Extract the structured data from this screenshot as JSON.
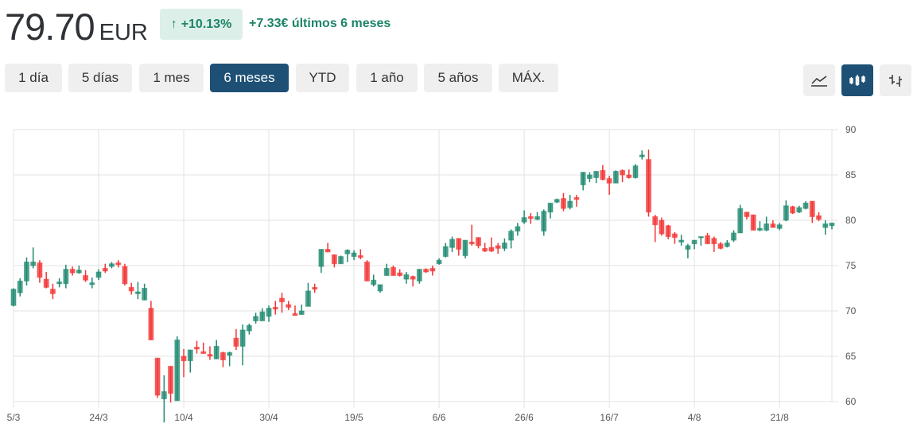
{
  "header": {
    "price": "79.70",
    "currency": "EUR",
    "change_pct": "+10.13%",
    "change_arrow_icon": "arrow-up-icon",
    "change_text": "+7.33€ últimos 6 meses",
    "positive_color": "#1d8468"
  },
  "ranges": [
    {
      "label": "1 día",
      "active": false
    },
    {
      "label": "5 días",
      "active": false
    },
    {
      "label": "1 mes",
      "active": false
    },
    {
      "label": "6 meses",
      "active": true
    },
    {
      "label": "YTD",
      "active": false
    },
    {
      "label": "1 año",
      "active": false
    },
    {
      "label": "5 años",
      "active": false
    },
    {
      "label": "MÁX.",
      "active": false
    }
  ],
  "chart_types": [
    {
      "icon": "line-chart-icon",
      "active": false
    },
    {
      "icon": "candlestick-chart-icon",
      "active": true
    },
    {
      "icon": "ohlc-chart-icon",
      "active": false
    }
  ],
  "chart_data": {
    "type": "candlestick",
    "up_color": "#1f8a70",
    "down_color": "#f23535",
    "ylim": [
      60,
      90
    ],
    "y_ticks": [
      "90",
      "85",
      "80",
      "75",
      "70",
      "65",
      "60"
    ],
    "y_axis_position": "right",
    "grid": true,
    "x_ticks": [
      {
        "index": 0,
        "label": "5/3"
      },
      {
        "index": 13,
        "label": "24/3"
      },
      {
        "index": 26,
        "label": "10/4"
      },
      {
        "index": 39,
        "label": "30/4"
      },
      {
        "index": 52,
        "label": "19/5"
      },
      {
        "index": 65,
        "label": "6/6"
      },
      {
        "index": 78,
        "label": "26/6"
      },
      {
        "index": 91,
        "label": "16/7"
      },
      {
        "index": 104,
        "label": "4/8"
      },
      {
        "index": 117,
        "label": "21/8"
      }
    ],
    "ohlc_fields": [
      "open",
      "high",
      "low",
      "close"
    ],
    "candles": [
      [
        70.6,
        72.5,
        70.5,
        72.4
      ],
      [
        72.0,
        73.6,
        71.6,
        73.3
      ],
      [
        73.3,
        75.9,
        72.8,
        75.4
      ],
      [
        75.0,
        77.0,
        74.7,
        75.4
      ],
      [
        75.3,
        75.6,
        73.1,
        73.7
      ],
      [
        73.5,
        74.3,
        72.5,
        72.6
      ],
      [
        72.4,
        73.0,
        71.3,
        71.9
      ],
      [
        73.0,
        73.6,
        72.6,
        73.2
      ],
      [
        73.0,
        75.1,
        72.5,
        74.6
      ],
      [
        74.6,
        74.9,
        73.9,
        74.2
      ],
      [
        74.2,
        75.0,
        74.1,
        74.5
      ],
      [
        73.9,
        74.5,
        73.2,
        73.4
      ],
      [
        72.9,
        73.7,
        72.5,
        73.1
      ],
      [
        73.7,
        74.6,
        73.4,
        74.3
      ],
      [
        74.7,
        75.2,
        74.2,
        74.4
      ],
      [
        74.9,
        75.4,
        74.7,
        75.2
      ],
      [
        75.3,
        75.6,
        74.8,
        75.1
      ],
      [
        74.9,
        75.2,
        72.8,
        73.0
      ],
      [
        72.6,
        73.1,
        71.8,
        72.2
      ],
      [
        71.9,
        73.2,
        71.3,
        72.1
      ],
      [
        71.2,
        73.0,
        71.2,
        72.5
      ],
      [
        70.3,
        71.1,
        66.8,
        66.8
      ],
      [
        64.8,
        64.8,
        60.4,
        60.7
      ],
      [
        60.3,
        62.9,
        57.7,
        61.1
      ],
      [
        63.9,
        63.9,
        59.9,
        60.9
      ],
      [
        60.1,
        67.2,
        60.1,
        66.8
      ],
      [
        65.0,
        65.8,
        62.7,
        64.5
      ],
      [
        64.5,
        65.7,
        63.2,
        65.7
      ],
      [
        66.0,
        66.7,
        65.3,
        65.8
      ],
      [
        65.5,
        66.5,
        65.3,
        65.3
      ],
      [
        65.2,
        66.1,
        64.6,
        65.0
      ],
      [
        64.7,
        66.8,
        64.7,
        66.1
      ],
      [
        65.4,
        65.5,
        63.8,
        64.6
      ],
      [
        65.1,
        65.5,
        63.9,
        65.4
      ],
      [
        67.0,
        68.0,
        65.7,
        66.1
      ],
      [
        66.1,
        68.5,
        64.0,
        67.9
      ],
      [
        67.8,
        68.6,
        67.4,
        68.4
      ],
      [
        68.9,
        69.8,
        68.6,
        69.4
      ],
      [
        68.9,
        70.3,
        68.9,
        69.9
      ],
      [
        69.4,
        70.6,
        68.8,
        70.3
      ],
      [
        70.4,
        71.1,
        69.6,
        70.2
      ],
      [
        71.4,
        72.0,
        69.8,
        71.0
      ],
      [
        70.7,
        71.1,
        70.1,
        70.4
      ],
      [
        69.7,
        70.6,
        69.5,
        69.5
      ],
      [
        69.6,
        70.7,
        69.6,
        70.0
      ],
      [
        70.5,
        73.1,
        70.5,
        72.2
      ],
      [
        72.6,
        73.0,
        72.0,
        72.4
      ],
      [
        74.9,
        76.8,
        74.2,
        76.8
      ],
      [
        76.8,
        77.5,
        76.5,
        76.5
      ],
      [
        76.2,
        76.2,
        74.8,
        75.2
      ],
      [
        75.2,
        76.1,
        75.2,
        76.0
      ],
      [
        76.3,
        76.8,
        75.4,
        76.7
      ],
      [
        76.0,
        76.7,
        75.6,
        76.4
      ],
      [
        76.1,
        76.8,
        75.7,
        75.9
      ],
      [
        75.4,
        75.6,
        73.3,
        73.3
      ],
      [
        72.9,
        74.0,
        72.7,
        73.4
      ],
      [
        72.2,
        72.9,
        72.0,
        72.9
      ],
      [
        73.9,
        75.2,
        73.9,
        74.7
      ],
      [
        74.8,
        75.0,
        73.9,
        73.9
      ],
      [
        74.2,
        74.6,
        73.8,
        73.9
      ],
      [
        73.5,
        74.3,
        73.0,
        74.0
      ],
      [
        73.8,
        73.9,
        72.7,
        73.5
      ],
      [
        73.3,
        74.6,
        73.0,
        74.6
      ],
      [
        74.6,
        74.7,
        74.2,
        74.3
      ],
      [
        74.7,
        75.0,
        73.9,
        74.4
      ],
      [
        75.2,
        75.8,
        75.1,
        75.6
      ],
      [
        76.0,
        77.5,
        75.9,
        77.1
      ],
      [
        77.0,
        78.2,
        76.5,
        77.9
      ],
      [
        78.0,
        78.0,
        76.1,
        76.8
      ],
      [
        76.1,
        77.8,
        75.8,
        77.8
      ],
      [
        77.6,
        79.5,
        77.2,
        77.4
      ],
      [
        78.1,
        78.1,
        76.9,
        77.2
      ],
      [
        76.9,
        77.5,
        76.5,
        76.6
      ],
      [
        77.0,
        78.1,
        76.5,
        76.6
      ],
      [
        77.2,
        77.5,
        76.3,
        76.9
      ],
      [
        76.9,
        78.0,
        76.6,
        77.5
      ],
      [
        77.8,
        79.0,
        76.9,
        78.8
      ],
      [
        78.8,
        79.7,
        78.3,
        79.3
      ],
      [
        79.8,
        81.1,
        79.6,
        80.3
      ],
      [
        80.4,
        80.8,
        79.6,
        80.2
      ],
      [
        80.1,
        80.9,
        80.0,
        80.4
      ],
      [
        78.8,
        81.2,
        78.3,
        81.0
      ],
      [
        80.9,
        81.9,
        80.2,
        81.9
      ],
      [
        82.0,
        82.4,
        81.9,
        82.3
      ],
      [
        82.4,
        83.0,
        81.0,
        81.3
      ],
      [
        81.4,
        82.8,
        81.2,
        82.1
      ],
      [
        82.5,
        82.8,
        81.5,
        82.3
      ],
      [
        83.9,
        85.3,
        83.3,
        85.3
      ],
      [
        84.6,
        85.3,
        84.2,
        85.0
      ],
      [
        84.7,
        85.4,
        84.1,
        85.4
      ],
      [
        85.5,
        86.1,
        84.4,
        84.5
      ],
      [
        84.6,
        84.9,
        82.8,
        84.1
      ],
      [
        84.1,
        85.5,
        84.1,
        85.4
      ],
      [
        85.5,
        85.6,
        84.2,
        85.0
      ],
      [
        85.0,
        85.6,
        84.6,
        84.7
      ],
      [
        84.7,
        86.2,
        84.6,
        86.0
      ],
      [
        87.0,
        87.7,
        86.7,
        87.2
      ],
      [
        86.7,
        87.8,
        80.4,
        80.9
      ],
      [
        80.4,
        80.6,
        77.6,
        79.5
      ],
      [
        80.0,
        80.3,
        78.3,
        78.5
      ],
      [
        79.4,
        79.5,
        77.9,
        78.2
      ],
      [
        78.5,
        78.7,
        77.4,
        78.1
      ],
      [
        77.6,
        78.4,
        77.2,
        77.8
      ],
      [
        76.8,
        77.4,
        75.8,
        77.2
      ],
      [
        77.4,
        77.8,
        76.8,
        77.8
      ],
      [
        78.1,
        78.2,
        77.2,
        78.2
      ],
      [
        78.3,
        78.6,
        77.4,
        77.4
      ],
      [
        78.0,
        78.2,
        76.5,
        77.4
      ],
      [
        77.4,
        77.6,
        76.8,
        76.9
      ],
      [
        77.1,
        77.8,
        77.0,
        77.5
      ],
      [
        77.8,
        78.9,
        77.6,
        78.6
      ],
      [
        78.6,
        81.7,
        78.6,
        81.3
      ],
      [
        80.9,
        80.9,
        80.1,
        80.4
      ],
      [
        80.6,
        80.6,
        78.9,
        78.9
      ],
      [
        78.9,
        79.9,
        78.8,
        79.1
      ],
      [
        78.9,
        80.4,
        78.8,
        79.6
      ],
      [
        79.6,
        80.0,
        79.2,
        79.2
      ],
      [
        79.1,
        79.7,
        78.9,
        79.5
      ],
      [
        80.0,
        82.2,
        79.9,
        81.6
      ],
      [
        81.5,
        81.6,
        80.7,
        80.8
      ],
      [
        80.9,
        81.6,
        80.8,
        81.4
      ],
      [
        81.3,
        82.1,
        81.2,
        81.9
      ],
      [
        82.1,
        82.1,
        79.7,
        80.4
      ],
      [
        80.5,
        80.9,
        79.9,
        80.1
      ],
      [
        79.2,
        80.0,
        78.4,
        79.6
      ],
      [
        79.4,
        79.7,
        79.0,
        79.7
      ]
    ]
  }
}
